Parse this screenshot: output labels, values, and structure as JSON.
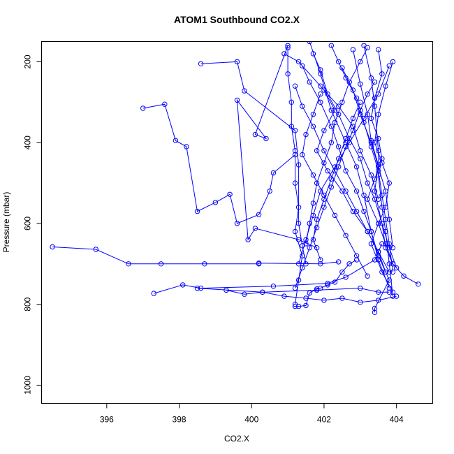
{
  "chart_data": {
    "type": "scatter",
    "title": "ATOM1 Southbound CO2.X",
    "xlabel": "CO2.X",
    "ylabel": "Pressure (mbar)",
    "xlim": [
      394.2,
      405.0
    ],
    "ylim": [
      1045,
      150
    ],
    "y_reversed": true,
    "x_ticks": [
      396,
      398,
      400,
      402,
      404
    ],
    "y_ticks": [
      200,
      400,
      600,
      800,
      1000
    ],
    "grid": false,
    "color": "#0000ff",
    "marker": "open-circle",
    "line_connected": true,
    "profiles": [
      {
        "x": [
          397.0,
          397.6,
          397.9,
          398.2,
          398.5,
          399.0,
          399.4,
          399.6,
          400.2,
          400.5,
          400.6,
          401.2
        ],
        "y": [
          315,
          305,
          395,
          410,
          570,
          548,
          528,
          600,
          578,
          520,
          475,
          430
        ]
      },
      {
        "x": [
          401.0,
          400.1,
          400.4,
          399.6,
          399.9,
          400.1,
          401.3,
          401.8
        ],
        "y": [
          160,
          380,
          390,
          295,
          640,
          612,
          640,
          660
        ]
      },
      {
        "x": [
          394.5,
          395.7,
          396.6,
          397.5,
          398.7,
          400.2,
          400.2,
          401.9,
          402.4
        ],
        "y": [
          658,
          664,
          700,
          700,
          700,
          700,
          698,
          700,
          695
        ]
      },
      {
        "x": [
          397.3,
          398.1,
          398.6,
          400.6,
          402.1,
          402.6,
          403.4,
          403.6
        ],
        "y": [
          773,
          752,
          760,
          755,
          748,
          733,
          690,
          650
        ]
      },
      {
        "x": [
          398.6,
          399.6,
          399.8,
          401.2,
          401.3,
          401.3,
          401.4,
          401.5
        ],
        "y": [
          205,
          200,
          272,
          370,
          455,
          600,
          655,
          700
        ]
      },
      {
        "x": [
          401.2,
          401.3,
          401.5,
          401.6,
          401.8,
          401.9,
          402.1,
          402.3,
          402.5,
          402.7,
          402.9
        ],
        "y": [
          805,
          805,
          803,
          772,
          762,
          760,
          752,
          745,
          720,
          700,
          690
        ]
      },
      {
        "x": [
          403.1,
          403.3,
          403.4,
          403.5,
          403.5,
          403.6,
          403.7,
          403.8,
          403.9
        ],
        "y": [
          160,
          240,
          310,
          420,
          480,
          560,
          620,
          700,
          780
        ]
      },
      {
        "x": [
          402.8,
          403.0,
          403.2,
          403.3,
          403.5,
          403.4,
          403.6,
          403.7,
          403.9,
          404.2,
          404.6
        ],
        "y": [
          170,
          255,
          330,
          395,
          455,
          520,
          600,
          660,
          700,
          730,
          750
        ]
      },
      {
        "x": [
          401.6,
          401.9,
          402.2,
          402.6,
          402.9,
          403.1,
          403.3,
          403.5,
          403.8,
          403.4,
          403.4
        ],
        "y": [
          150,
          230,
          320,
          400,
          460,
          530,
          620,
          680,
          740,
          810,
          820
        ]
      },
      {
        "x": [
          403.9,
          403.7,
          403.5,
          403.4,
          403.6,
          403.8,
          403.7,
          403.5,
          403.3,
          403.6,
          403.9
        ],
        "y": [
          200,
          260,
          330,
          400,
          450,
          500,
          560,
          600,
          650,
          720,
          770
        ]
      },
      {
        "x": [
          401.0,
          401.0,
          401.1,
          401.1,
          401.2,
          401.2,
          401.3,
          401.2,
          401.4,
          401.3,
          401.2
        ],
        "y": [
          165,
          230,
          300,
          360,
          420,
          500,
          560,
          620,
          680,
          740,
          800
        ]
      },
      {
        "x": [
          403.2,
          403.0,
          402.7,
          402.5,
          402.3,
          402.2,
          402.0,
          401.8,
          401.7,
          401.6,
          401.5
        ],
        "y": [
          165,
          200,
          250,
          300,
          350,
          400,
          450,
          500,
          550,
          600,
          650
        ]
      },
      {
        "x": [
          401.7,
          401.9,
          402.1,
          402.4,
          402.7,
          403.0,
          403.2,
          403.4,
          403.6,
          403.8,
          404.0
        ],
        "y": [
          180,
          220,
          280,
          330,
          390,
          440,
          500,
          540,
          600,
          660,
          710
        ]
      },
      {
        "x": [
          401.4,
          401.6,
          401.9,
          402.2,
          402.4,
          402.6,
          402.9,
          403.1,
          403.3,
          403.5,
          403.8
        ],
        "y": [
          210,
          250,
          300,
          360,
          410,
          470,
          520,
          570,
          620,
          690,
          760
        ]
      },
      {
        "x": [
          403.5,
          403.6,
          403.4,
          403.3,
          403.5,
          403.6,
          403.4,
          403.2,
          403.5,
          403.7,
          403.9
        ],
        "y": [
          170,
          230,
          290,
          340,
          390,
          440,
          490,
          540,
          600,
          650,
          700
        ]
      },
      {
        "x": [
          402.2,
          402.4,
          402.6,
          402.9,
          403.1,
          403.3,
          403.5,
          403.6,
          403.7,
          403.8,
          403.9
        ],
        "y": [
          160,
          200,
          240,
          290,
          350,
          410,
          470,
          530,
          590,
          650,
          720
        ]
      },
      {
        "x": [
          400.9,
          401.3,
          401.9,
          402.4,
          402.8,
          403.0,
          403.3,
          403.5
        ],
        "y": [
          180,
          200,
          260,
          310,
          360,
          420,
          480,
          540
        ]
      },
      {
        "x": [
          401.9,
          401.7,
          401.5,
          401.4,
          401.7,
          402.0,
          402.3,
          402.6,
          402.9,
          403.2
        ],
        "y": [
          280,
          330,
          380,
          430,
          480,
          530,
          580,
          630,
          680,
          730
        ]
      },
      {
        "x": [
          402.0,
          402.3,
          402.0,
          401.8,
          402.1,
          402.5,
          402.8,
          403.2,
          403.5,
          403.7
        ],
        "y": [
          270,
          320,
          370,
          420,
          470,
          520,
          570,
          620,
          670,
          720
        ]
      },
      {
        "x": [
          403.8,
          403.5,
          403.1,
          402.7,
          402.3,
          401.9,
          401.7,
          401.5,
          401.3
        ],
        "y": [
          210,
          280,
          340,
          400,
          460,
          520,
          580,
          640,
          700
        ]
      },
      {
        "x": [
          398.5,
          400.3,
          401.8,
          403.0,
          403.5,
          403.8
        ],
        "y": [
          760,
          770,
          765,
          760,
          770,
          770
        ]
      },
      {
        "x": [
          399.3,
          399.8,
          400.3,
          400.9,
          401.5,
          402.0,
          402.5,
          403.0,
          403.5,
          404.0
        ],
        "y": [
          765,
          775,
          770,
          780,
          785,
          790,
          785,
          795,
          790,
          780
        ]
      },
      {
        "x": [
          403.4,
          403.2,
          403.0,
          402.8,
          402.6,
          402.4,
          402.2,
          402.0,
          401.8,
          401.6,
          401.4,
          401.2
        ],
        "y": [
          250,
          280,
          320,
          370,
          410,
          460,
          510,
          560,
          610,
          660,
          710,
          760
        ]
      },
      {
        "x": [
          401.2,
          401.4,
          401.7,
          402.0,
          402.3,
          402.6,
          402.9,
          403.2,
          403.5,
          403.8
        ],
        "y": [
          260,
          310,
          360,
          420,
          470,
          520,
          570,
          620,
          670,
          720
        ]
      },
      {
        "x": [
          402.5,
          402.8,
          403.0,
          403.3,
          403.5,
          403.7,
          403.8,
          403.9
        ],
        "y": [
          215,
          270,
          330,
          400,
          460,
          520,
          590,
          660
        ]
      },
      {
        "x": [
          403.0,
          402.8,
          402.6,
          402.4,
          402.2,
          402.0,
          401.8,
          401.7,
          401.9
        ],
        "y": [
          300,
          340,
          390,
          440,
          490,
          540,
          590,
          640,
          690
        ]
      }
    ]
  }
}
